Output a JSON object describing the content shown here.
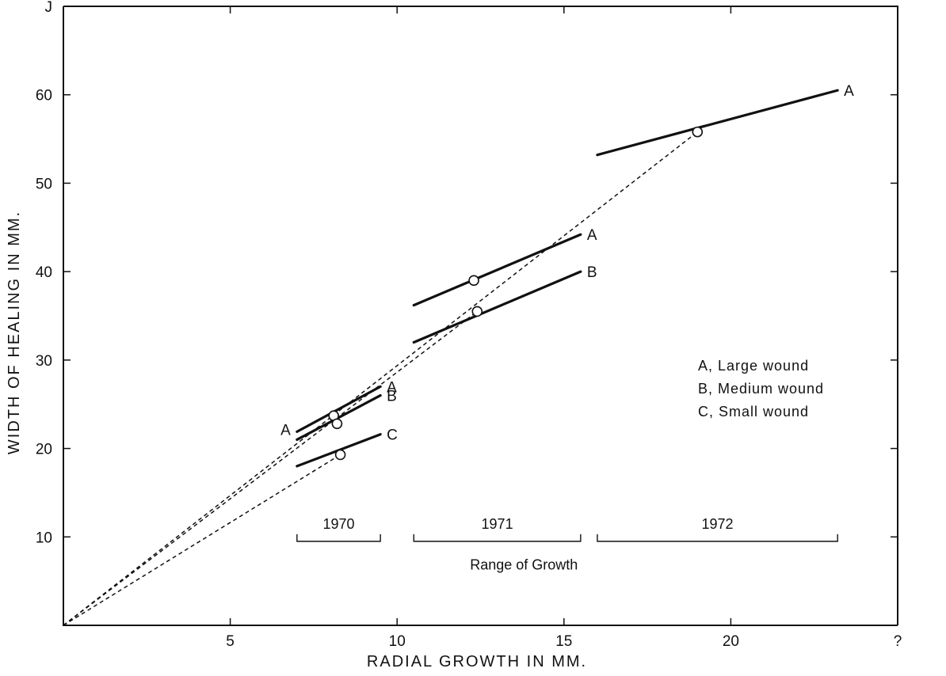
{
  "chart_data": {
    "type": "line",
    "xlabel": "RADIAL GROWTH IN MM.",
    "ylabel": "WIDTH OF HEALING IN MM.",
    "xlim": [
      0,
      25
    ],
    "ylim": [
      0,
      70
    ],
    "x_ticks": [
      {
        "value": 5,
        "label": "5"
      },
      {
        "value": 10,
        "label": "10"
      },
      {
        "value": 15,
        "label": "15"
      },
      {
        "value": 20,
        "label": "20"
      },
      {
        "value": 25,
        "label": "?"
      }
    ],
    "y_ticks": [
      {
        "value": 10,
        "label": "10"
      },
      {
        "value": 20,
        "label": "20"
      },
      {
        "value": 30,
        "label": "30"
      },
      {
        "value": 40,
        "label": "40"
      },
      {
        "value": 50,
        "label": "50"
      },
      {
        "value": 60,
        "label": "60"
      },
      {
        "value": 70,
        "label": "J"
      }
    ],
    "series": [
      {
        "label": "A",
        "x": [
          7.0,
          9.5
        ],
        "y": [
          21.9,
          27.0
        ]
      },
      {
        "label": "B",
        "x": [
          7.0,
          9.5
        ],
        "y": [
          21.0,
          26.0
        ]
      },
      {
        "label": "C",
        "x": [
          7.0,
          9.5
        ],
        "y": [
          18.0,
          21.6
        ]
      },
      {
        "label": "A",
        "x": [
          10.5,
          15.5
        ],
        "y": [
          36.2,
          44.2
        ]
      },
      {
        "label": "B",
        "x": [
          10.5,
          15.5
        ],
        "y": [
          32.0,
          40.0
        ]
      },
      {
        "label": "A",
        "x": [
          16.0,
          23.2
        ],
        "y": [
          53.2,
          60.5
        ]
      }
    ],
    "points": [
      {
        "x": 8.1,
        "y": 23.7
      },
      {
        "x": 8.2,
        "y": 22.8
      },
      {
        "x": 8.3,
        "y": 19.3
      },
      {
        "x": 12.3,
        "y": 39.0
      },
      {
        "x": 12.4,
        "y": 35.5
      },
      {
        "x": 19.0,
        "y": 55.8
      }
    ],
    "trend_lines": [
      {
        "x": [
          0,
          19.0
        ],
        "y": [
          0,
          55.8
        ]
      },
      {
        "x": [
          0,
          12.4
        ],
        "y": [
          0,
          35.5
        ]
      },
      {
        "x": [
          0,
          8.3
        ],
        "y": [
          0,
          19.3
        ]
      }
    ],
    "legend": {
      "placement": "right",
      "entries": [
        "A, Large wound",
        "B, Medium wound",
        "C, Small wound"
      ]
    },
    "year_ranges": [
      {
        "label": "1970",
        "x": [
          7.0,
          9.5
        ]
      },
      {
        "label": "1971",
        "x": [
          10.5,
          15.5
        ]
      },
      {
        "label": "1972",
        "x": [
          16.0,
          23.2
        ]
      }
    ],
    "range_caption": "Range of Growth",
    "range_caption_x": 13.8
  }
}
